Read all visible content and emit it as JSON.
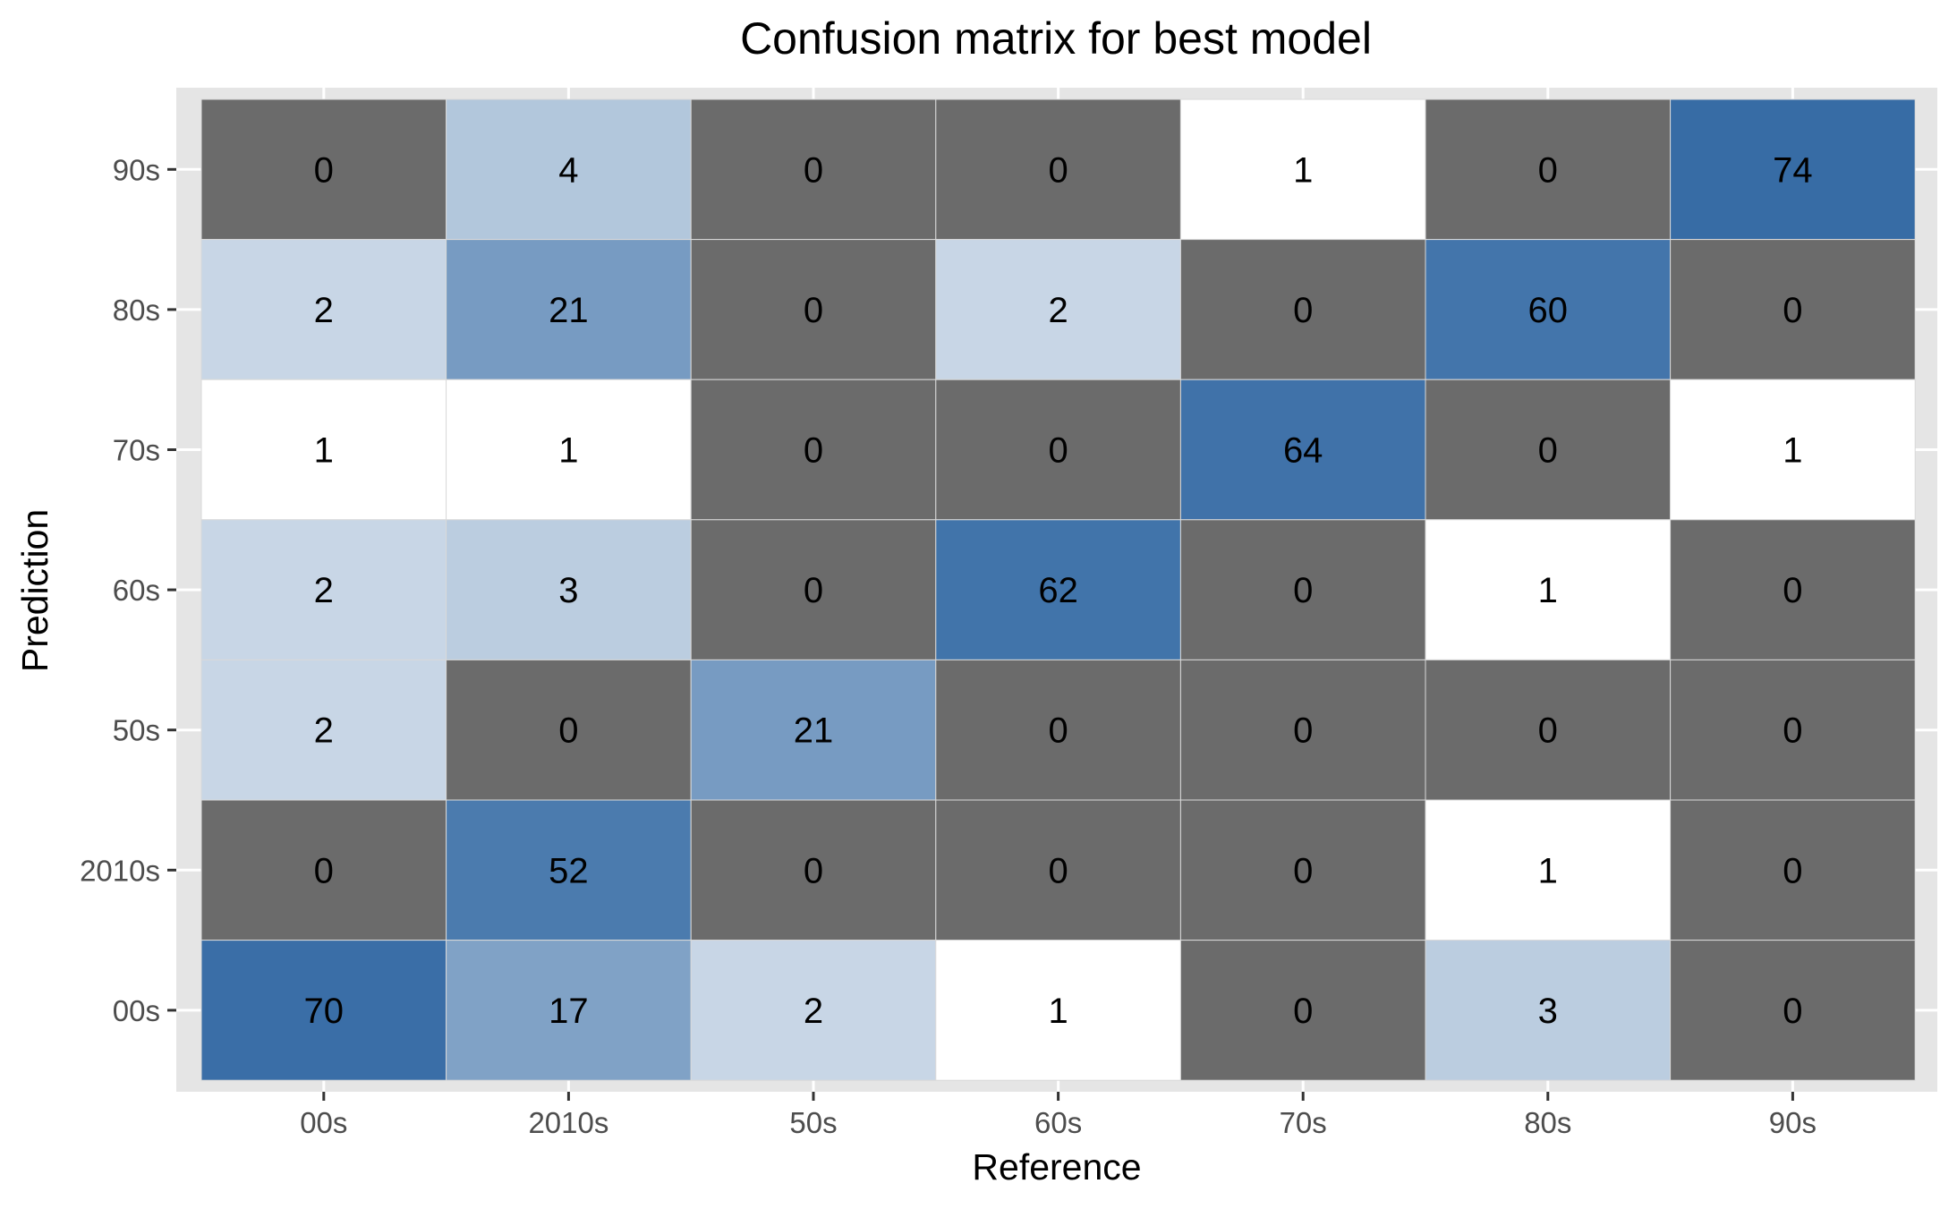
{
  "chart_data": {
    "type": "heatmap",
    "title": "Confusion matrix for best model",
    "xlabel": "Reference",
    "ylabel": "Prediction",
    "x_categories": [
      "00s",
      "2010s",
      "50s",
      "60s",
      "70s",
      "80s",
      "90s"
    ],
    "y_categories": [
      "90s",
      "80s",
      "70s",
      "60s",
      "50s",
      "2010s",
      "00s"
    ],
    "values": [
      [
        0,
        4,
        0,
        0,
        1,
        0,
        74
      ],
      [
        2,
        21,
        0,
        2,
        0,
        60,
        0
      ],
      [
        1,
        1,
        0,
        0,
        64,
        0,
        1
      ],
      [
        2,
        3,
        0,
        62,
        0,
        1,
        0
      ],
      [
        2,
        0,
        21,
        0,
        0,
        0,
        0
      ],
      [
        0,
        52,
        0,
        0,
        0,
        1,
        0
      ],
      [
        70,
        17,
        2,
        1,
        0,
        3,
        0
      ]
    ],
    "zero_color": "#6b6b6b",
    "low_color": "#ffffff",
    "high_color": "#376ca5",
    "panel_background": "#e5e5e5",
    "grid": true,
    "legend": "none"
  }
}
